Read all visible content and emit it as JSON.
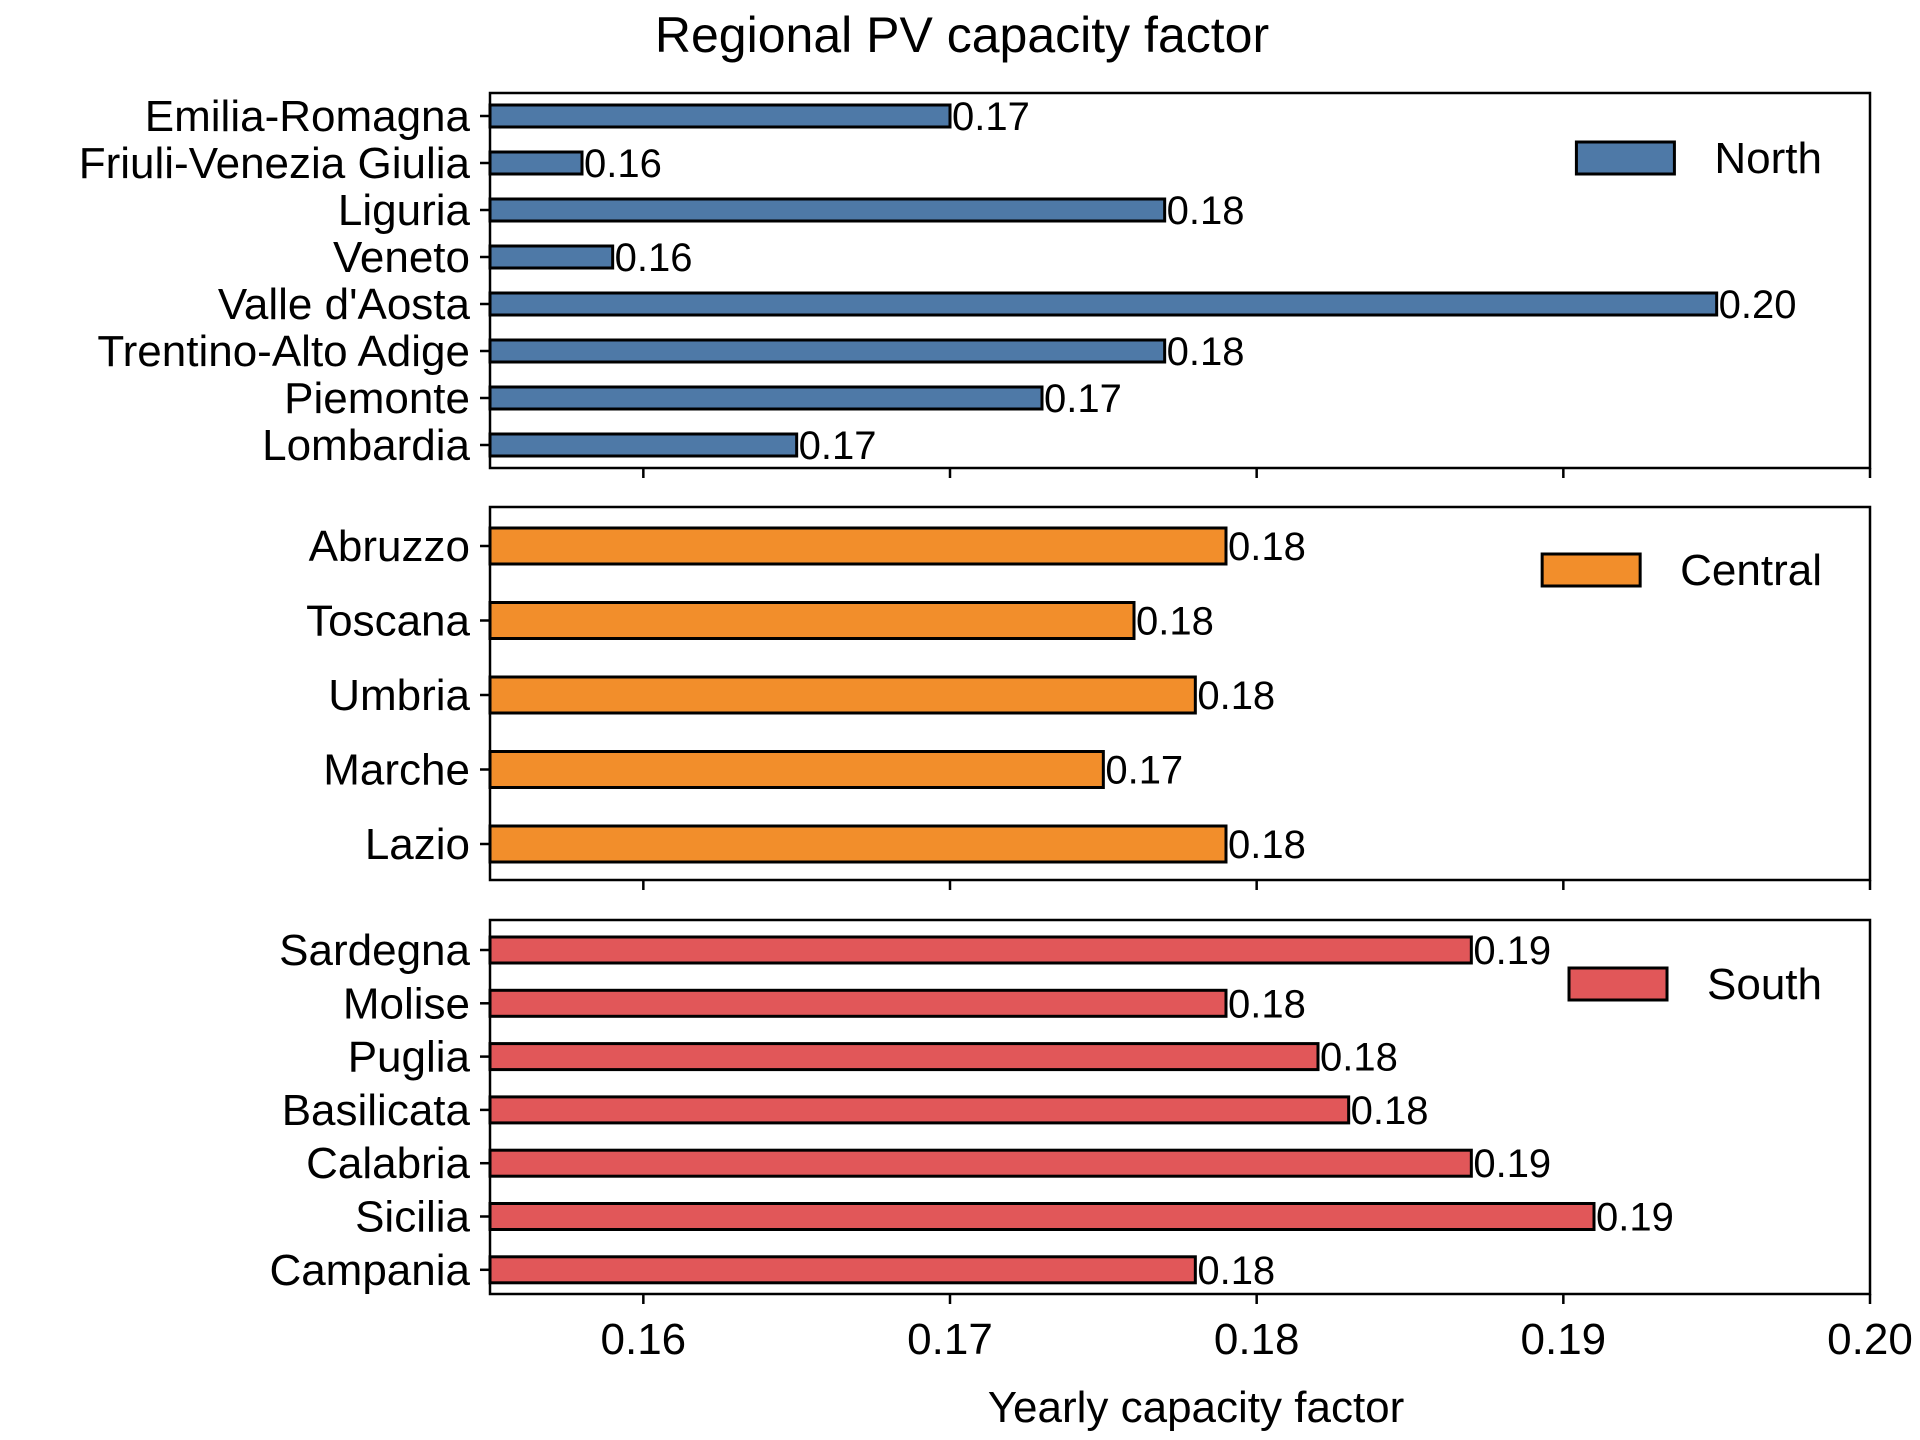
{
  "chart_data": {
    "type": "bar",
    "orientation": "horizontal",
    "title": "Regional PV capacity factor",
    "xlabel": "Yearly capacity factor",
    "xlim": [
      0.155,
      0.2
    ],
    "xticks": [
      0.16,
      0.17,
      0.18,
      0.19,
      0.2
    ],
    "xtick_labels": [
      "0.16",
      "0.17",
      "0.18",
      "0.19",
      "0.20"
    ],
    "grid": false,
    "legend_position": "top-right",
    "panels": [
      {
        "name": "North",
        "color": "#4e79a7",
        "categories": [
          "Emilia-Romagna",
          "Friuli-Venezia Giulia",
          "Liguria",
          "Veneto",
          "Valle d'Aosta",
          "Trentino-Alto Adige",
          "Piemonte",
          "Lombardia"
        ],
        "values": [
          0.17,
          0.158,
          0.177,
          0.159,
          0.195,
          0.177,
          0.173,
          0.165
        ],
        "labels": [
          "0.17",
          "0.16",
          "0.18",
          "0.16",
          "0.20",
          "0.18",
          "0.17",
          "0.17"
        ]
      },
      {
        "name": "Central",
        "color": "#f28e2b",
        "categories": [
          "Abruzzo",
          "Toscana",
          "Umbria",
          "Marche",
          "Lazio"
        ],
        "values": [
          0.179,
          0.176,
          0.178,
          0.175,
          0.179
        ],
        "labels": [
          "0.18",
          "0.18",
          "0.18",
          "0.17",
          "0.18"
        ]
      },
      {
        "name": "South",
        "color": "#e15759",
        "categories": [
          "Sardegna",
          "Molise",
          "Puglia",
          "Basilicata",
          "Calabria",
          "Sicilia",
          "Campania"
        ],
        "values": [
          0.187,
          0.179,
          0.182,
          0.183,
          0.187,
          0.191,
          0.178
        ],
        "labels": [
          "0.19",
          "0.18",
          "0.18",
          "0.18",
          "0.19",
          "0.19",
          "0.18"
        ]
      }
    ]
  }
}
